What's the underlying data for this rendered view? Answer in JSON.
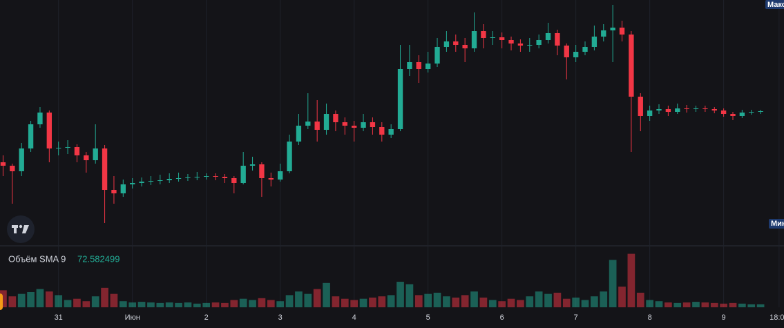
{
  "chart_data": {
    "type": "candlestick",
    "x": [
      -18,
      -15,
      -12,
      -9,
      -6,
      -3,
      0,
      3,
      6,
      9,
      12,
      15,
      18,
      21,
      24,
      27,
      30,
      33,
      36,
      39,
      42,
      45,
      48,
      51,
      54,
      57,
      60,
      63,
      66,
      69,
      72,
      75,
      78,
      81,
      84,
      87,
      90,
      93,
      96,
      99,
      102,
      105,
      108,
      111,
      114,
      117,
      120,
      123,
      126,
      129,
      132,
      135,
      138,
      141,
      144,
      147,
      150,
      153,
      156,
      159,
      162,
      165,
      168,
      171,
      174,
      177,
      180,
      183,
      186,
      189,
      192,
      195,
      198,
      201,
      204,
      207,
      210,
      213,
      216,
      219,
      222,
      225,
      228
    ],
    "open": [
      120,
      115,
      107,
      140,
      175,
      192,
      140,
      141,
      142,
      130,
      123,
      140,
      80,
      75,
      88,
      90,
      92,
      93,
      94,
      96,
      97,
      98,
      99,
      100,
      99,
      97,
      90,
      115,
      117,
      97,
      95,
      107,
      150,
      173,
      179,
      167,
      190,
      178,
      173,
      170,
      178,
      171,
      160,
      168,
      255,
      265,
      255,
      263,
      287,
      295,
      290,
      285,
      310,
      300,
      301,
      297,
      292,
      289,
      290,
      297,
      307,
      289,
      272,
      280,
      287,
      302,
      311,
      315,
      305,
      215,
      187,
      195,
      197,
      193,
      198,
      197,
      198,
      197,
      195,
      190,
      187,
      192,
      193
    ],
    "high": [
      130,
      118,
      148,
      180,
      200,
      195,
      150,
      152,
      146,
      135,
      175,
      145,
      100,
      95,
      97,
      98,
      100,
      102,
      104,
      105,
      103,
      106,
      104,
      104,
      103,
      100,
      135,
      128,
      120,
      105,
      118,
      160,
      190,
      220,
      210,
      205,
      195,
      185,
      180,
      190,
      185,
      178,
      175,
      290,
      290,
      275,
      280,
      300,
      310,
      305,
      300,
      337,
      320,
      310,
      308,
      302,
      298,
      300,
      305,
      322,
      312,
      292,
      290,
      295,
      318,
      320,
      348,
      325,
      310,
      220,
      202,
      204,
      202,
      205,
      203,
      202,
      202,
      200,
      198,
      193,
      196,
      196,
      196
    ],
    "low": [
      100,
      60,
      100,
      135,
      170,
      120,
      130,
      132,
      120,
      105,
      118,
      32,
      60,
      70,
      82,
      85,
      87,
      88,
      90,
      92,
      93,
      94,
      95,
      94,
      90,
      75,
      88,
      108,
      70,
      85,
      92,
      104,
      145,
      168,
      150,
      160,
      165,
      160,
      150,
      165,
      160,
      150,
      155,
      165,
      245,
      235,
      250,
      258,
      280,
      280,
      265,
      280,
      285,
      290,
      285,
      282,
      280,
      280,
      285,
      292,
      275,
      240,
      265,
      275,
      282,
      295,
      265,
      295,
      135,
      165,
      180,
      190,
      187,
      190,
      192,
      193,
      193,
      191,
      186,
      181,
      184,
      189,
      190
    ],
    "close": [
      115,
      107,
      140,
      175,
      192,
      140,
      141,
      142,
      130,
      123,
      140,
      80,
      75,
      88,
      90,
      92,
      93,
      94,
      96,
      97,
      98,
      99,
      100,
      99,
      97,
      90,
      115,
      117,
      97,
      95,
      107,
      150,
      173,
      179,
      167,
      190,
      178,
      173,
      170,
      178,
      171,
      160,
      168,
      255,
      265,
      255,
      263,
      287,
      295,
      290,
      285,
      310,
      300,
      301,
      297,
      292,
      289,
      290,
      297,
      307,
      289,
      272,
      280,
      287,
      302,
      311,
      315,
      305,
      215,
      187,
      195,
      197,
      193,
      198,
      197,
      198,
      197,
      195,
      190,
      187,
      192,
      193,
      194
    ],
    "volume": [
      28,
      18,
      22,
      25,
      30,
      26,
      20,
      12,
      14,
      10,
      18,
      32,
      22,
      10,
      8,
      9,
      8,
      7,
      8,
      7,
      8,
      6,
      7,
      8,
      7,
      12,
      14,
      12,
      15,
      12,
      10,
      20,
      26,
      22,
      30,
      40,
      18,
      14,
      12,
      14,
      16,
      18,
      20,
      42,
      38,
      20,
      22,
      24,
      18,
      16,
      20,
      26,
      16,
      12,
      10,
      14,
      12,
      18,
      26,
      22,
      24,
      14,
      16,
      12,
      18,
      26,
      78,
      34,
      88,
      24,
      12,
      10,
      8,
      7,
      8,
      9,
      8,
      7,
      6,
      7,
      6,
      5,
      5
    ],
    "up_color": "#22ab94",
    "down_color": "#f23645",
    "xlim": [
      -19,
      235.6
    ],
    "ylim": [
      0,
      355
    ],
    "volume_lim": [
      0,
      100
    ],
    "xticks": [
      {
        "value": 0,
        "label": "31"
      },
      {
        "value": 24,
        "label": "Июн"
      },
      {
        "value": 48,
        "label": "2"
      },
      {
        "value": 72,
        "label": "3"
      },
      {
        "value": 96,
        "label": "4"
      },
      {
        "value": 120,
        "label": "5"
      },
      {
        "value": 144,
        "label": "6"
      },
      {
        "value": 168,
        "label": "7"
      },
      {
        "value": 192,
        "label": "8"
      },
      {
        "value": 216,
        "label": "9"
      },
      {
        "value": 234,
        "label": "18:00"
      }
    ],
    "grid": true,
    "volume_indicator": {
      "label": "Объём SMA 9",
      "value": 72.582499
    },
    "max_label": "Макс",
    "min_label": "Мин"
  }
}
